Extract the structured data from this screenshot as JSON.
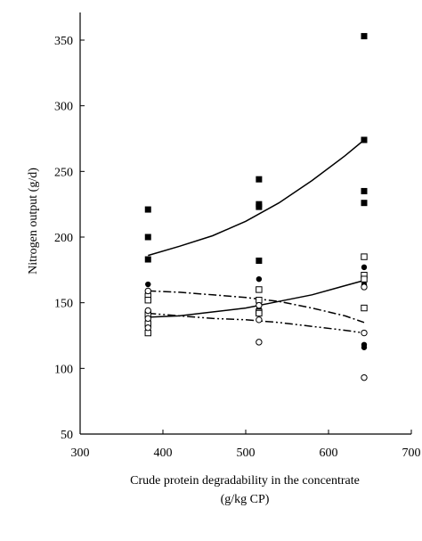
{
  "chart_data": {
    "type": "scatter",
    "title": "",
    "xlabel": "Crude protein degradability in the concentrate",
    "xlabel_line2": "(g/kg CP)",
    "ylabel": "Nitrogen output (g/d)",
    "xlim": [
      300,
      700
    ],
    "ylim": [
      50,
      360
    ],
    "xticks": [
      300,
      400,
      500,
      600,
      700
    ],
    "yticks": [
      50,
      100,
      150,
      200,
      250,
      300,
      350
    ],
    "xtick_labels": [
      "300",
      "400",
      "500",
      "600",
      "700"
    ],
    "ytick_labels": [
      "50",
      "100",
      "150",
      "200",
      "250",
      "300",
      "350"
    ],
    "grid": false,
    "legend": "none",
    "series": [
      {
        "marker": "filled-square",
        "line_style": "solid",
        "points": [
          [
            382,
            221
          ],
          [
            382,
            200
          ],
          [
            382,
            183
          ],
          [
            516,
            244
          ],
          [
            516,
            225
          ],
          [
            516,
            223
          ],
          [
            516,
            182
          ],
          [
            643,
            353
          ],
          [
            643,
            274
          ],
          [
            643,
            235
          ],
          [
            643,
            226
          ]
        ],
        "fit": [
          [
            382,
            186
          ],
          [
            420,
            193
          ],
          [
            460,
            201
          ],
          [
            500,
            212
          ],
          [
            540,
            226
          ],
          [
            580,
            243
          ],
          [
            620,
            262
          ],
          [
            643,
            274
          ]
        ]
      },
      {
        "marker": "filled-circle",
        "line_style": "solid",
        "points": [
          [
            382,
            164
          ],
          [
            382,
            158
          ],
          [
            382,
            155
          ],
          [
            516,
            168
          ],
          [
            516,
            151
          ],
          [
            516,
            145
          ],
          [
            643,
            177
          ],
          [
            643,
            164
          ],
          [
            643,
            118
          ],
          [
            643,
            116
          ]
        ],
        "fit": [
          [
            382,
            139
          ],
          [
            420,
            140
          ],
          [
            460,
            143
          ],
          [
            500,
            146
          ],
          [
            540,
            151
          ],
          [
            580,
            156
          ],
          [
            620,
            163
          ],
          [
            643,
            167
          ]
        ]
      },
      {
        "marker": "open-square",
        "line_style": "dash-dot",
        "points": [
          [
            382,
            155
          ],
          [
            382,
            152
          ],
          [
            382,
            141
          ],
          [
            382,
            134
          ],
          [
            382,
            127
          ],
          [
            516,
            160
          ],
          [
            516,
            152
          ],
          [
            516,
            143
          ],
          [
            516,
            142
          ],
          [
            643,
            185
          ],
          [
            643,
            171
          ],
          [
            643,
            168
          ],
          [
            643,
            146
          ]
        ],
        "fit": [
          [
            382,
            159
          ],
          [
            420,
            158
          ],
          [
            460,
            156
          ],
          [
            500,
            154
          ],
          [
            540,
            151
          ],
          [
            580,
            146
          ],
          [
            620,
            140
          ],
          [
            643,
            135
          ]
        ]
      },
      {
        "marker": "open-circle",
        "line_style": "dash-dot-dot",
        "points": [
          [
            382,
            159
          ],
          [
            382,
            144
          ],
          [
            382,
            138
          ],
          [
            382,
            131
          ],
          [
            516,
            148
          ],
          [
            516,
            137
          ],
          [
            516,
            120
          ],
          [
            643,
            162
          ],
          [
            643,
            127
          ],
          [
            643,
            93
          ]
        ],
        "fit": [
          [
            382,
            142
          ],
          [
            420,
            140
          ],
          [
            460,
            138
          ],
          [
            500,
            137
          ],
          [
            540,
            135
          ],
          [
            580,
            132
          ],
          [
            620,
            129
          ],
          [
            643,
            127
          ]
        ]
      }
    ]
  }
}
